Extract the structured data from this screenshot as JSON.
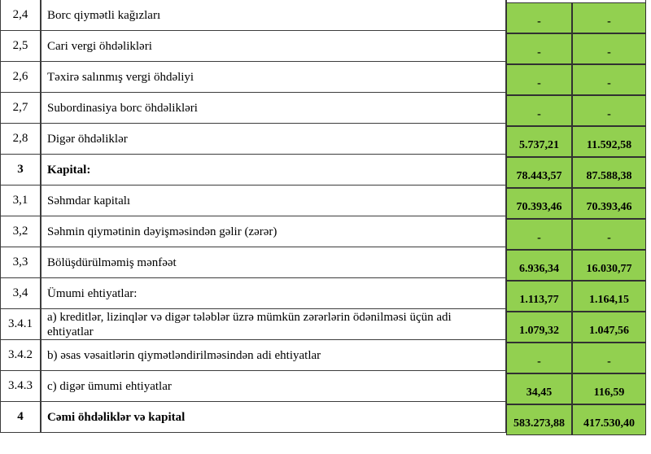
{
  "table": {
    "description": "Balance sheet fragment (liabilities and capital) in Azerbaijani",
    "rows": [
      {
        "num": "2,4",
        "label": "Borc qiymətli kağızları",
        "v1": "-",
        "v2": "-",
        "bold": false
      },
      {
        "num": "2,5",
        "label": "Cari vergi öhdəlikləri",
        "v1": "-",
        "v2": "-",
        "bold": false
      },
      {
        "num": "2,6",
        "label": "Təxirə salınmış vergi öhdəliyi",
        "v1": "-",
        "v2": "-",
        "bold": false
      },
      {
        "num": "2,7",
        "label": "Subordinasiya borc öhdəlikləri",
        "v1": "-",
        "v2": "-",
        "bold": false
      },
      {
        "num": "2,8",
        "label": "Digər öhdəliklər",
        "v1": "5.737,21",
        "v2": "11.592,58",
        "bold": false
      },
      {
        "num": "3",
        "label": "Kapital:",
        "v1": "78.443,57",
        "v2": "87.588,38",
        "bold": true
      },
      {
        "num": "3,1",
        "label": "Səhmdar kapitalı",
        "v1": "70.393,46",
        "v2": "70.393,46",
        "bold": false
      },
      {
        "num": "3,2",
        "label": "Səhmin qiymətinin dəyişməsindən gəlir (zərər)",
        "v1": "-",
        "v2": "-",
        "bold": false
      },
      {
        "num": "3,3",
        "label": "Bölüşdürülməmiş mənfəət",
        "v1": "6.936,34",
        "v2": "16.030,77",
        "bold": false
      },
      {
        "num": "3,4",
        "label": "Ümumi ehtiyatlar:",
        "v1": "1.113,77",
        "v2": "1.164,15",
        "bold": false
      },
      {
        "num": "3.4.1",
        "label": "a) kreditlər, lizinqlər və digər tələblər üzrə mümkün zərərlərin ödənilməsi üçün adi ehtiyatlar",
        "v1": "1.079,32",
        "v2": "1.047,56",
        "bold": false
      },
      {
        "num": "3.4.2",
        "label": "b) əsas vəsaitlərin qiymətləndirilməsindən adi ehtiyatlar",
        "v1": "-",
        "v2": "-",
        "bold": false
      },
      {
        "num": "3.4.3",
        "label": "c) digər ümumi ehtiyatlar",
        "v1": "34,45",
        "v2": "116,59",
        "bold": false
      },
      {
        "num": "4",
        "label": "Cəmi öhdəliklər və kapital",
        "v1": "583.273,88",
        "v2": "417.530,40",
        "bold": true
      }
    ]
  },
  "colors": {
    "value_cell_green": "#92d050",
    "grid_border": "#3c3c3c",
    "value_grid_border": "#313131",
    "text": "#000000",
    "background": "#ffffff"
  }
}
